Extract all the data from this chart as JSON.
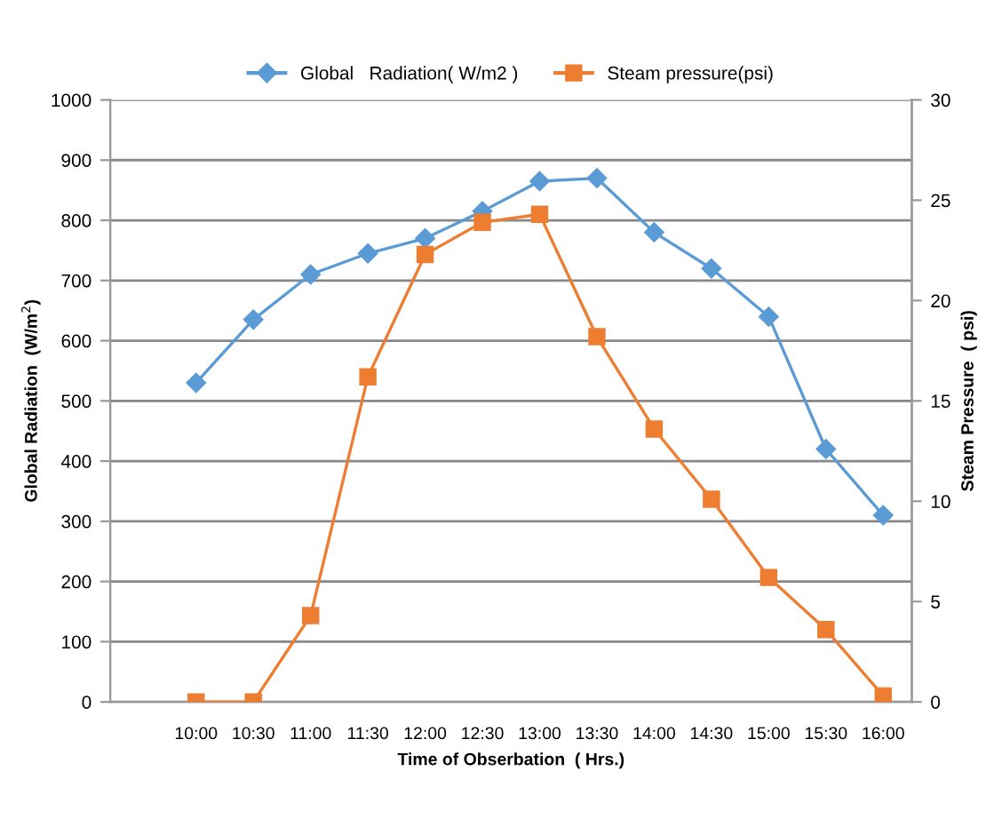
{
  "chart_data": {
    "type": "line",
    "xlabel": "Time of Obserbation  ( Hrs.)",
    "ylabel": "Global Radiation  (W/m$^{2}$)",
    "y2label": "Steam Pressure  ( psi)",
    "categories": [
      null,
      "10:00",
      "10:30",
      "11:00",
      "11:30",
      "12:00",
      "12:30",
      "13:00",
      "13:30",
      "14:00",
      "14:30",
      "15:00",
      "15:30",
      "16:00"
    ],
    "series": [
      {
        "name": "Global   Radiation( W/m2 )",
        "color": "#5b9bd5",
        "marker": "diamond",
        "values": [
          null,
          530,
          635,
          710,
          745,
          770,
          815,
          865,
          870,
          780,
          720,
          640,
          420,
          310
        ]
      },
      {
        "name": "Steam pressure(psi)",
        "color": "#ed7d31",
        "marker": "square",
        "axis": "y2",
        "values": [
          null,
          0,
          0,
          4.3,
          16.2,
          22.3,
          23.9,
          24.3,
          18.2,
          13.6,
          10.1,
          6.2,
          3.6,
          0.3
        ]
      }
    ],
    "ylim": [
      0,
      1000
    ],
    "yticks": [
      0,
      100,
      200,
      300,
      400,
      500,
      600,
      700,
      800,
      900,
      1000
    ],
    "y2lim": [
      0,
      30
    ],
    "y2ticks": [
      0,
      5,
      10,
      15,
      20,
      25,
      30
    ],
    "grid": "y",
    "legend": "top",
    "line_style": "solid"
  }
}
